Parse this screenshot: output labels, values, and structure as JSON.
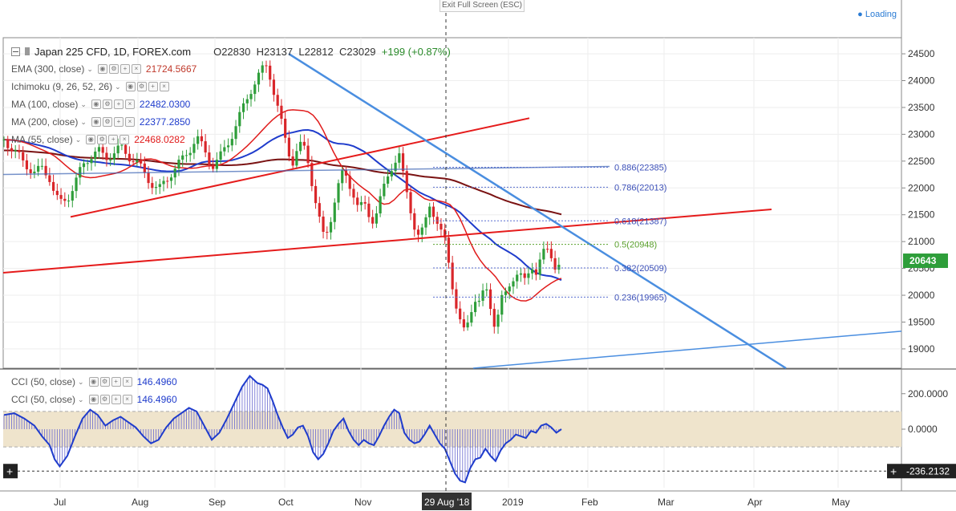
{
  "toolbar": {
    "exit_fullscreen": "Exit Full Screen (ESC)",
    "loading": "Loading"
  },
  "legend": {
    "symbol": "Japan 225 CFD, 1D, FOREX.com",
    "open": "O22830",
    "high": "H23137",
    "low": "L22812",
    "close": "C23029",
    "change": "+199 (+0.87%)",
    "indicators": [
      {
        "name": "EMA (300, close)",
        "value": "21724.5667",
        "color": "#c0392b"
      },
      {
        "name": "Ichimoku (9, 26, 52, 26)",
        "value": "",
        "color": "#888888"
      },
      {
        "name": "MA (100, close)",
        "value": "22482.0300",
        "color": "#1f3ccc"
      },
      {
        "name": "MA (200, close)",
        "value": "22377.2850",
        "color": "#1f3ccc"
      },
      {
        "name": "MA (55, close)",
        "value": "22468.0282",
        "color": "#e01b1b"
      }
    ]
  },
  "cci_legend": [
    {
      "name": "CCI (50, close)",
      "value": "146.4960"
    },
    {
      "name": "CCI (50, close)",
      "value": "146.4960"
    }
  ],
  "crosshair": {
    "date_label": "29 Aug '18"
  },
  "colors": {
    "up": "#2e9e3a",
    "down": "#d9262a",
    "ema300": "#7a1212",
    "ma55": "#e01b1b",
    "ma100": "#1f3ccc",
    "ma200": "#3d64b5",
    "trend_blue": "#4a8ee0",
    "trend_red": "#e51b1b",
    "cci": "#1f3ccc",
    "cci_band": "#efe4cc",
    "price_tag": "#2e9e3a"
  },
  "chart_data": {
    "type": "candlestick",
    "x_tick_labels": [
      "Jul",
      "Aug",
      "Sep",
      "Oct",
      "Nov",
      "29 Aug '18",
      "2019",
      "Feb",
      "Mar",
      "Apr",
      "May"
    ],
    "y_axis": {
      "ticks": [
        19000,
        19500,
        20000,
        20500,
        21000,
        21500,
        22000,
        22500,
        23000,
        23500,
        24000,
        24500
      ],
      "ylim": [
        18640,
        24800
      ]
    },
    "last_price": "20643",
    "fibonacci": [
      {
        "label": "0.886(22385)",
        "value": 22385
      },
      {
        "label": "0.786(22013)",
        "value": 22013
      },
      {
        "label": "0.618(21387)",
        "value": 21387
      },
      {
        "label": "0.5(20948)",
        "value": 20948
      },
      {
        "label": "0.382(20509)",
        "value": 20509
      },
      {
        "label": "0.236(19965)",
        "value": 19965
      }
    ],
    "close_path": [
      [
        0,
        22900
      ],
      [
        8,
        22700
      ],
      [
        16,
        22450
      ],
      [
        24,
        22300
      ],
      [
        30,
        22350
      ],
      [
        36,
        22200
      ],
      [
        40,
        21900
      ],
      [
        44,
        21700
      ],
      [
        50,
        21800
      ],
      [
        56,
        22100
      ],
      [
        62,
        22400
      ],
      [
        68,
        22600
      ],
      [
        74,
        22700
      ],
      [
        80,
        22550
      ],
      [
        86,
        22650
      ],
      [
        92,
        22750
      ],
      [
        98,
        22600
      ],
      [
        104,
        22500
      ],
      [
        110,
        22300
      ],
      [
        116,
        22100
      ],
      [
        122,
        21950
      ],
      [
        128,
        22150
      ],
      [
        134,
        22350
      ],
      [
        140,
        22500
      ],
      [
        146,
        22700
      ],
      [
        152,
        22950
      ],
      [
        158,
        22700
      ],
      [
        164,
        22400
      ],
      [
        170,
        22550
      ],
      [
        176,
        22800
      ],
      [
        182,
        23100
      ],
      [
        188,
        23450
      ],
      [
        194,
        23800
      ],
      [
        200,
        24050
      ],
      [
        204,
        24200
      ],
      [
        208,
        24300
      ],
      [
        212,
        23900
      ],
      [
        216,
        23500
      ],
      [
        220,
        23100
      ],
      [
        224,
        22700
      ],
      [
        228,
        22500
      ],
      [
        232,
        22750
      ],
      [
        236,
        22800
      ],
      [
        240,
        22500
      ],
      [
        244,
        22000
      ],
      [
        248,
        21500
      ],
      [
        252,
        21100
      ],
      [
        256,
        21200
      ],
      [
        260,
        21700
      ],
      [
        264,
        22050
      ],
      [
        268,
        22300
      ],
      [
        272,
        22100
      ],
      [
        276,
        21900
      ],
      [
        280,
        21600
      ],
      [
        284,
        21700
      ],
      [
        288,
        21500
      ],
      [
        292,
        21400
      ],
      [
        296,
        21700
      ],
      [
        300,
        22000
      ],
      [
        304,
        22300
      ],
      [
        308,
        22500
      ],
      [
        312,
        22600
      ],
      [
        316,
        22100
      ],
      [
        320,
        21700
      ],
      [
        324,
        21300
      ],
      [
        328,
        21050
      ],
      [
        332,
        21300
      ],
      [
        336,
        21700
      ],
      [
        340,
        21500
      ],
      [
        344,
        21200
      ],
      [
        348,
        21000
      ],
      [
        352,
        20500
      ],
      [
        356,
        19900
      ],
      [
        360,
        19500
      ],
      [
        364,
        19250
      ],
      [
        368,
        19700
      ],
      [
        372,
        19950
      ],
      [
        376,
        19850
      ],
      [
        380,
        20150
      ],
      [
        384,
        19800
      ],
      [
        388,
        19400
      ],
      [
        392,
        19900
      ],
      [
        396,
        20000
      ],
      [
        400,
        20250
      ],
      [
        404,
        20450
      ],
      [
        408,
        20350
      ],
      [
        412,
        20200
      ],
      [
        416,
        20600
      ],
      [
        420,
        20450
      ],
      [
        424,
        20700
      ],
      [
        428,
        20850
      ],
      [
        432,
        20750
      ],
      [
        436,
        20500
      ],
      [
        440,
        20643
      ]
    ],
    "cci": {
      "ticks": [
        200,
        0
      ],
      "ylim": [
        -330,
        330
      ],
      "band": [
        100,
        -100
      ],
      "readout": "-236.2132",
      "tick_labels": [
        "200.0000",
        "0.0000"
      ],
      "values": [
        [
          0,
          80
        ],
        [
          8,
          90
        ],
        [
          16,
          60
        ],
        [
          24,
          20
        ],
        [
          30,
          -40
        ],
        [
          36,
          -90
        ],
        [
          40,
          -170
        ],
        [
          44,
          -210
        ],
        [
          50,
          -150
        ],
        [
          56,
          -40
        ],
        [
          62,
          60
        ],
        [
          68,
          110
        ],
        [
          74,
          80
        ],
        [
          80,
          20
        ],
        [
          86,
          50
        ],
        [
          92,
          70
        ],
        [
          98,
          40
        ],
        [
          104,
          10
        ],
        [
          110,
          -40
        ],
        [
          116,
          -80
        ],
        [
          122,
          -60
        ],
        [
          128,
          10
        ],
        [
          134,
          60
        ],
        [
          140,
          90
        ],
        [
          146,
          120
        ],
        [
          152,
          100
        ],
        [
          158,
          20
        ],
        [
          164,
          -60
        ],
        [
          170,
          -20
        ],
        [
          176,
          60
        ],
        [
          182,
          150
        ],
        [
          188,
          240
        ],
        [
          194,
          300
        ],
        [
          200,
          260
        ],
        [
          204,
          250
        ],
        [
          208,
          230
        ],
        [
          212,
          160
        ],
        [
          216,
          80
        ],
        [
          220,
          10
        ],
        [
          224,
          -50
        ],
        [
          228,
          -30
        ],
        [
          232,
          10
        ],
        [
          236,
          20
        ],
        [
          240,
          -40
        ],
        [
          244,
          -130
        ],
        [
          248,
          -170
        ],
        [
          252,
          -140
        ],
        [
          256,
          -80
        ],
        [
          260,
          -10
        ],
        [
          264,
          30
        ],
        [
          268,
          60
        ],
        [
          272,
          -10
        ],
        [
          276,
          -60
        ],
        [
          280,
          -90
        ],
        [
          284,
          -60
        ],
        [
          288,
          -80
        ],
        [
          292,
          -90
        ],
        [
          296,
          -40
        ],
        [
          300,
          20
        ],
        [
          304,
          70
        ],
        [
          308,
          110
        ],
        [
          312,
          90
        ],
        [
          316,
          -20
        ],
        [
          320,
          -60
        ],
        [
          324,
          -80
        ],
        [
          328,
          -70
        ],
        [
          332,
          -30
        ],
        [
          336,
          20
        ],
        [
          340,
          -30
        ],
        [
          344,
          -80
        ],
        [
          348,
          -110
        ],
        [
          352,
          -180
        ],
        [
          356,
          -250
        ],
        [
          360,
          -290
        ],
        [
          364,
          -300
        ],
        [
          368,
          -220
        ],
        [
          372,
          -170
        ],
        [
          376,
          -160
        ],
        [
          380,
          -110
        ],
        [
          384,
          -150
        ],
        [
          388,
          -180
        ],
        [
          392,
          -120
        ],
        [
          396,
          -80
        ],
        [
          400,
          -60
        ],
        [
          404,
          -30
        ],
        [
          408,
          -40
        ],
        [
          412,
          -50
        ],
        [
          416,
          -10
        ],
        [
          420,
          -20
        ],
        [
          424,
          20
        ],
        [
          428,
          30
        ],
        [
          432,
          10
        ],
        [
          436,
          -20
        ],
        [
          440,
          0
        ]
      ]
    }
  }
}
